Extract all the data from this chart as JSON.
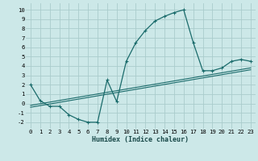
{
  "xlabel": "Humidex (Indice chaleur)",
  "bg_color": "#cce8e8",
  "grid_color": "#aacccc",
  "line_color": "#1a6b6b",
  "xlim": [
    -0.5,
    23.5
  ],
  "ylim": [
    -2.7,
    10.7
  ],
  "xticks": [
    0,
    1,
    2,
    3,
    4,
    5,
    6,
    7,
    8,
    9,
    10,
    11,
    12,
    13,
    14,
    15,
    16,
    17,
    18,
    19,
    20,
    21,
    22,
    23
  ],
  "yticks": [
    -2,
    -1,
    0,
    1,
    2,
    3,
    4,
    5,
    6,
    7,
    8,
    9,
    10
  ],
  "curve_x": [
    0,
    1,
    2,
    3,
    4,
    5,
    6,
    7,
    8,
    9,
    10,
    11,
    12,
    13,
    14,
    15,
    16,
    17,
    18,
    19,
    20,
    21,
    22,
    23
  ],
  "curve_y": [
    2.0,
    0.3,
    -0.3,
    -0.3,
    -1.2,
    -1.7,
    -2.0,
    -2.0,
    2.5,
    0.2,
    4.5,
    6.5,
    7.8,
    8.8,
    9.3,
    9.7,
    10.0,
    6.5,
    3.5,
    3.5,
    3.8,
    4.5,
    4.7,
    4.5
  ],
  "line1_x": [
    0,
    23
  ],
  "line1_y": [
    -0.4,
    3.6
  ],
  "line2_x": [
    0,
    23
  ],
  "line2_y": [
    -0.2,
    3.8
  ],
  "xlabel_fontsize": 6.0,
  "tick_fontsize": 5.2,
  "marker_size": 2.5
}
